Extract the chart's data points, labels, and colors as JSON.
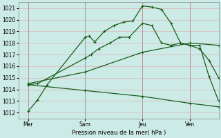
{
  "background_color": "#cceae6",
  "grid_color": "#ddbbbb",
  "line_color": "#1a5c1a",
  "title": "Pression niveau de la mer( hPa )",
  "ylim": [
    1011.5,
    1021.5
  ],
  "yticks": [
    1012,
    1013,
    1014,
    1015,
    1016,
    1017,
    1018,
    1019,
    1020,
    1021
  ],
  "xtick_labels": [
    "Mer",
    "Sam",
    "Jeu",
    "Ven"
  ],
  "xtick_positions": [
    0.5,
    3.5,
    6.5,
    9.0
  ],
  "vline_positions": [
    0.5,
    3.5,
    6.5,
    9.0
  ],
  "xlim": [
    0,
    10.5
  ],
  "lines": [
    {
      "x": [
        0.5,
        1.0,
        1.5,
        3.5,
        3.7,
        4.0,
        4.5,
        5.0,
        5.5,
        6.0,
        6.5,
        7.0,
        7.5,
        8.0,
        8.5,
        9.0,
        9.5,
        10.0,
        10.5
      ],
      "y": [
        1012.1,
        1013.1,
        1014.4,
        1018.5,
        1018.6,
        1018.1,
        1019.0,
        1019.5,
        1019.8,
        1019.9,
        1021.2,
        1021.1,
        1020.9,
        1019.7,
        1018.0,
        1017.8,
        1017.8,
        1015.1,
        1013.0
      ]
    },
    {
      "x": [
        0.5,
        1.0,
        3.5,
        3.8,
        4.2,
        4.8,
        5.3,
        5.8,
        6.5,
        7.0,
        7.5,
        8.0,
        8.5,
        9.0,
        9.5,
        10.0,
        10.5
      ],
      "y": [
        1014.4,
        1014.5,
        1016.7,
        1017.0,
        1017.5,
        1018.0,
        1018.5,
        1018.5,
        1019.7,
        1019.5,
        1018.0,
        1017.8,
        1018.0,
        1017.8,
        1017.5,
        1016.5,
        1015.0
      ]
    },
    {
      "x": [
        0.5,
        3.5,
        6.5,
        9.0,
        10.5
      ],
      "y": [
        1014.5,
        1015.5,
        1017.2,
        1018.0,
        1017.8
      ]
    },
    {
      "x": [
        0.5,
        3.5,
        6.5,
        9.0,
        10.5
      ],
      "y": [
        1014.4,
        1013.9,
        1013.4,
        1012.8,
        1012.5
      ]
    }
  ]
}
